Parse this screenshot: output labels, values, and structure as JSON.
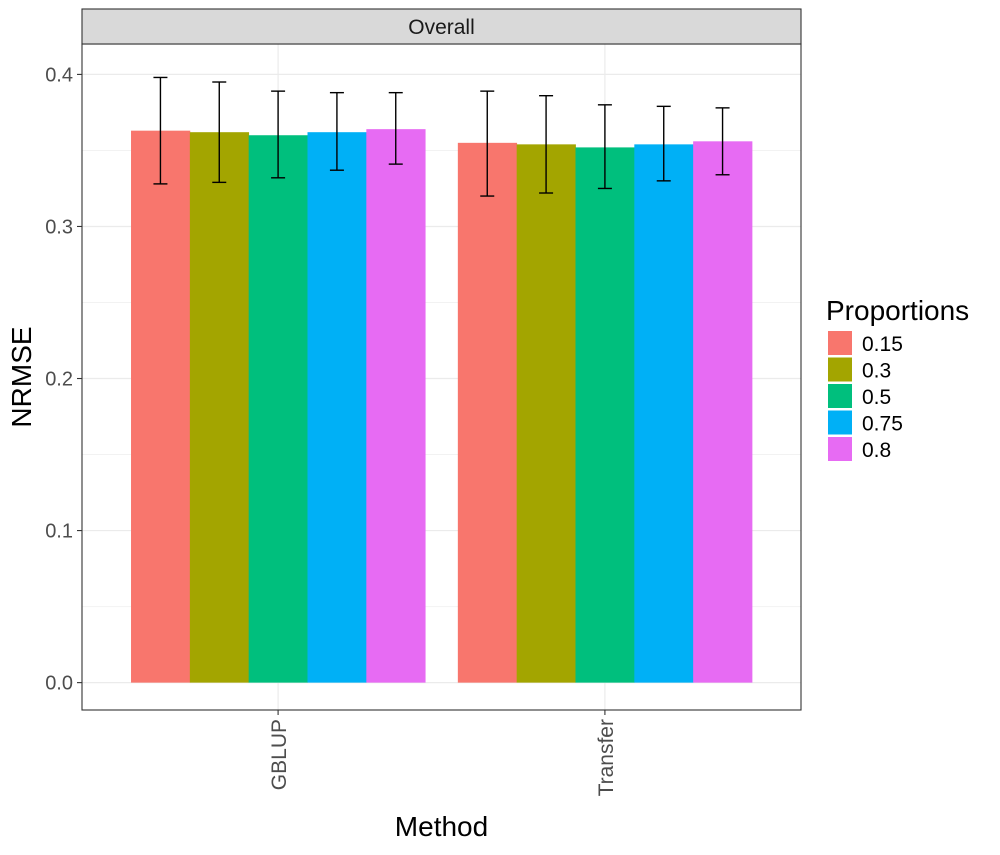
{
  "chart_data": {
    "type": "bar",
    "facet_title": "Overall",
    "categories": [
      "GBLUP",
      "Transfer"
    ],
    "xlabel": "Method",
    "ylabel": "NRMSE",
    "ylim": [
      -0.018,
      0.42
    ],
    "yticks": [
      0.0,
      0.1,
      0.2,
      0.3,
      0.4
    ],
    "ytick_labels": [
      "0.0",
      "0.1",
      "0.2",
      "0.3",
      "0.4"
    ],
    "grid": true,
    "legend": {
      "title": "Proportions",
      "position": "right"
    },
    "series": [
      {
        "name": "0.15",
        "color": "#F8766D",
        "values": [
          0.363,
          0.355
        ],
        "err_low": [
          0.328,
          0.32
        ],
        "err_high": [
          0.398,
          0.389
        ]
      },
      {
        "name": "0.3",
        "color": "#A3A500",
        "values": [
          0.362,
          0.354
        ],
        "err_low": [
          0.329,
          0.322
        ],
        "err_high": [
          0.395,
          0.386
        ]
      },
      {
        "name": "0.5",
        "color": "#00BF7D",
        "values": [
          0.36,
          0.352
        ],
        "err_low": [
          0.332,
          0.325
        ],
        "err_high": [
          0.389,
          0.38
        ]
      },
      {
        "name": "0.75",
        "color": "#00B0F6",
        "values": [
          0.362,
          0.354
        ],
        "err_low": [
          0.337,
          0.33
        ],
        "err_high": [
          0.388,
          0.379
        ]
      },
      {
        "name": "0.8",
        "color": "#E76BF3",
        "values": [
          0.364,
          0.356
        ],
        "err_low": [
          0.341,
          0.334
        ],
        "err_high": [
          0.388,
          0.378
        ]
      }
    ]
  }
}
